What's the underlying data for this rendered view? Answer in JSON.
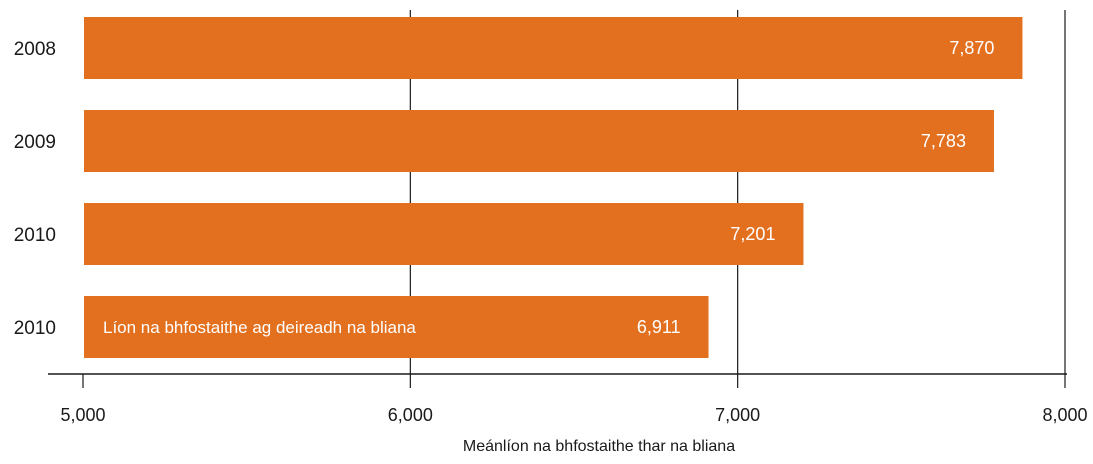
{
  "chart_data": {
    "type": "bar",
    "orientation": "horizontal",
    "categories": [
      "2008",
      "2009",
      "2010",
      "2010"
    ],
    "values": [
      7870,
      7783,
      7201,
      6911
    ],
    "value_labels": [
      "7,870",
      "7,783",
      "7,201",
      "6,911"
    ],
    "bar_inner_labels": [
      "",
      "",
      "",
      "Líon na bhfostaithe ag deireadh na bliana"
    ],
    "xlabel": "Meánlíon na bhfostaithe thar na bliana",
    "xlim": [
      5000,
      8000
    ],
    "xticks": [
      5000,
      6000,
      7000,
      8000
    ],
    "xtick_labels": [
      "5,000",
      "6,000",
      "7,000",
      "8,000"
    ],
    "grid": true,
    "colors": {
      "bar": "#e2701f",
      "grid": "#1a1a1a",
      "text": "#1a1a1a"
    }
  }
}
